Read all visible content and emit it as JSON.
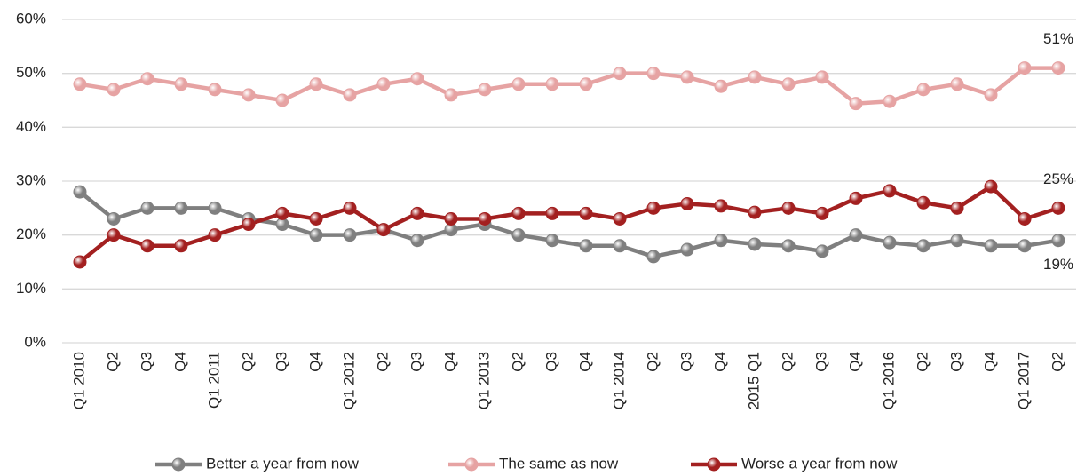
{
  "chart_data": {
    "type": "line",
    "categories": [
      "Q1 2010",
      "Q2",
      "Q3",
      "Q4",
      "Q1 2011",
      "Q2",
      "Q3",
      "Q4",
      "Q1 2012",
      "Q2",
      "Q3",
      "Q4",
      "Q1 2013",
      "Q2",
      "Q3",
      "Q4",
      "Q1 2014",
      "Q2",
      "Q3",
      "Q4",
      "2015 Q1",
      "Q2",
      "Q3",
      "Q4",
      "Q1 2016",
      "Q2",
      "Q3",
      "Q4",
      "Q1 2017",
      "Q2"
    ],
    "series": [
      {
        "name": "Better a year from now",
        "color": "#7f7f7f",
        "values": [
          28,
          23,
          25,
          25,
          25,
          23,
          22,
          20,
          20,
          21,
          19,
          21,
          22,
          20,
          19,
          18,
          18,
          16,
          17.3,
          19,
          18.3,
          18,
          17,
          20,
          18.6,
          18,
          19,
          18,
          18,
          19
        ],
        "value_labels": [
          null,
          null,
          null,
          null,
          null,
          null,
          null,
          null,
          null,
          null,
          null,
          null,
          null,
          null,
          null,
          null,
          null,
          null,
          null,
          null,
          null,
          null,
          null,
          null,
          null,
          null,
          null,
          null,
          null,
          "19%"
        ]
      },
      {
        "name": "The same as now",
        "color": "#e6a3a3",
        "values": [
          48,
          47,
          49,
          48,
          47,
          46,
          45,
          48,
          46,
          48,
          49,
          46,
          47,
          48,
          48,
          48,
          50,
          50,
          49.3,
          47.6,
          49.3,
          48,
          49.3,
          44.4,
          44.8,
          47,
          48,
          46,
          51,
          51
        ],
        "value_labels": [
          null,
          null,
          null,
          null,
          null,
          null,
          null,
          null,
          null,
          null,
          null,
          null,
          null,
          null,
          null,
          null,
          null,
          null,
          null,
          null,
          null,
          null,
          null,
          null,
          null,
          null,
          null,
          null,
          null,
          "51%"
        ]
      },
      {
        "name": "Worse a year from now",
        "color": "#a32020",
        "values": [
          15,
          20,
          18,
          18,
          20,
          22,
          24,
          23,
          25,
          21,
          24,
          23,
          23,
          24,
          24,
          24,
          23,
          25,
          25.8,
          25.4,
          24.2,
          25,
          24,
          26.8,
          28.2,
          26,
          25,
          29,
          23,
          25
        ],
        "value_labels": [
          null,
          null,
          null,
          null,
          null,
          null,
          null,
          null,
          null,
          null,
          null,
          null,
          null,
          null,
          null,
          null,
          null,
          null,
          null,
          null,
          null,
          null,
          null,
          null,
          null,
          null,
          null,
          null,
          null,
          "25%"
        ]
      }
    ],
    "ylim": [
      0,
      60
    ],
    "yticks": [
      {
        "value": 0,
        "label": "0%"
      },
      {
        "value": 10,
        "label": "10%"
      },
      {
        "value": 20,
        "label": "20%"
      },
      {
        "value": 30,
        "label": "30%"
      },
      {
        "value": 40,
        "label": "40%"
      },
      {
        "value": 50,
        "label": "50%"
      },
      {
        "value": 60,
        "label": "60%"
      }
    ],
    "grid": true,
    "legend": "bottom"
  }
}
